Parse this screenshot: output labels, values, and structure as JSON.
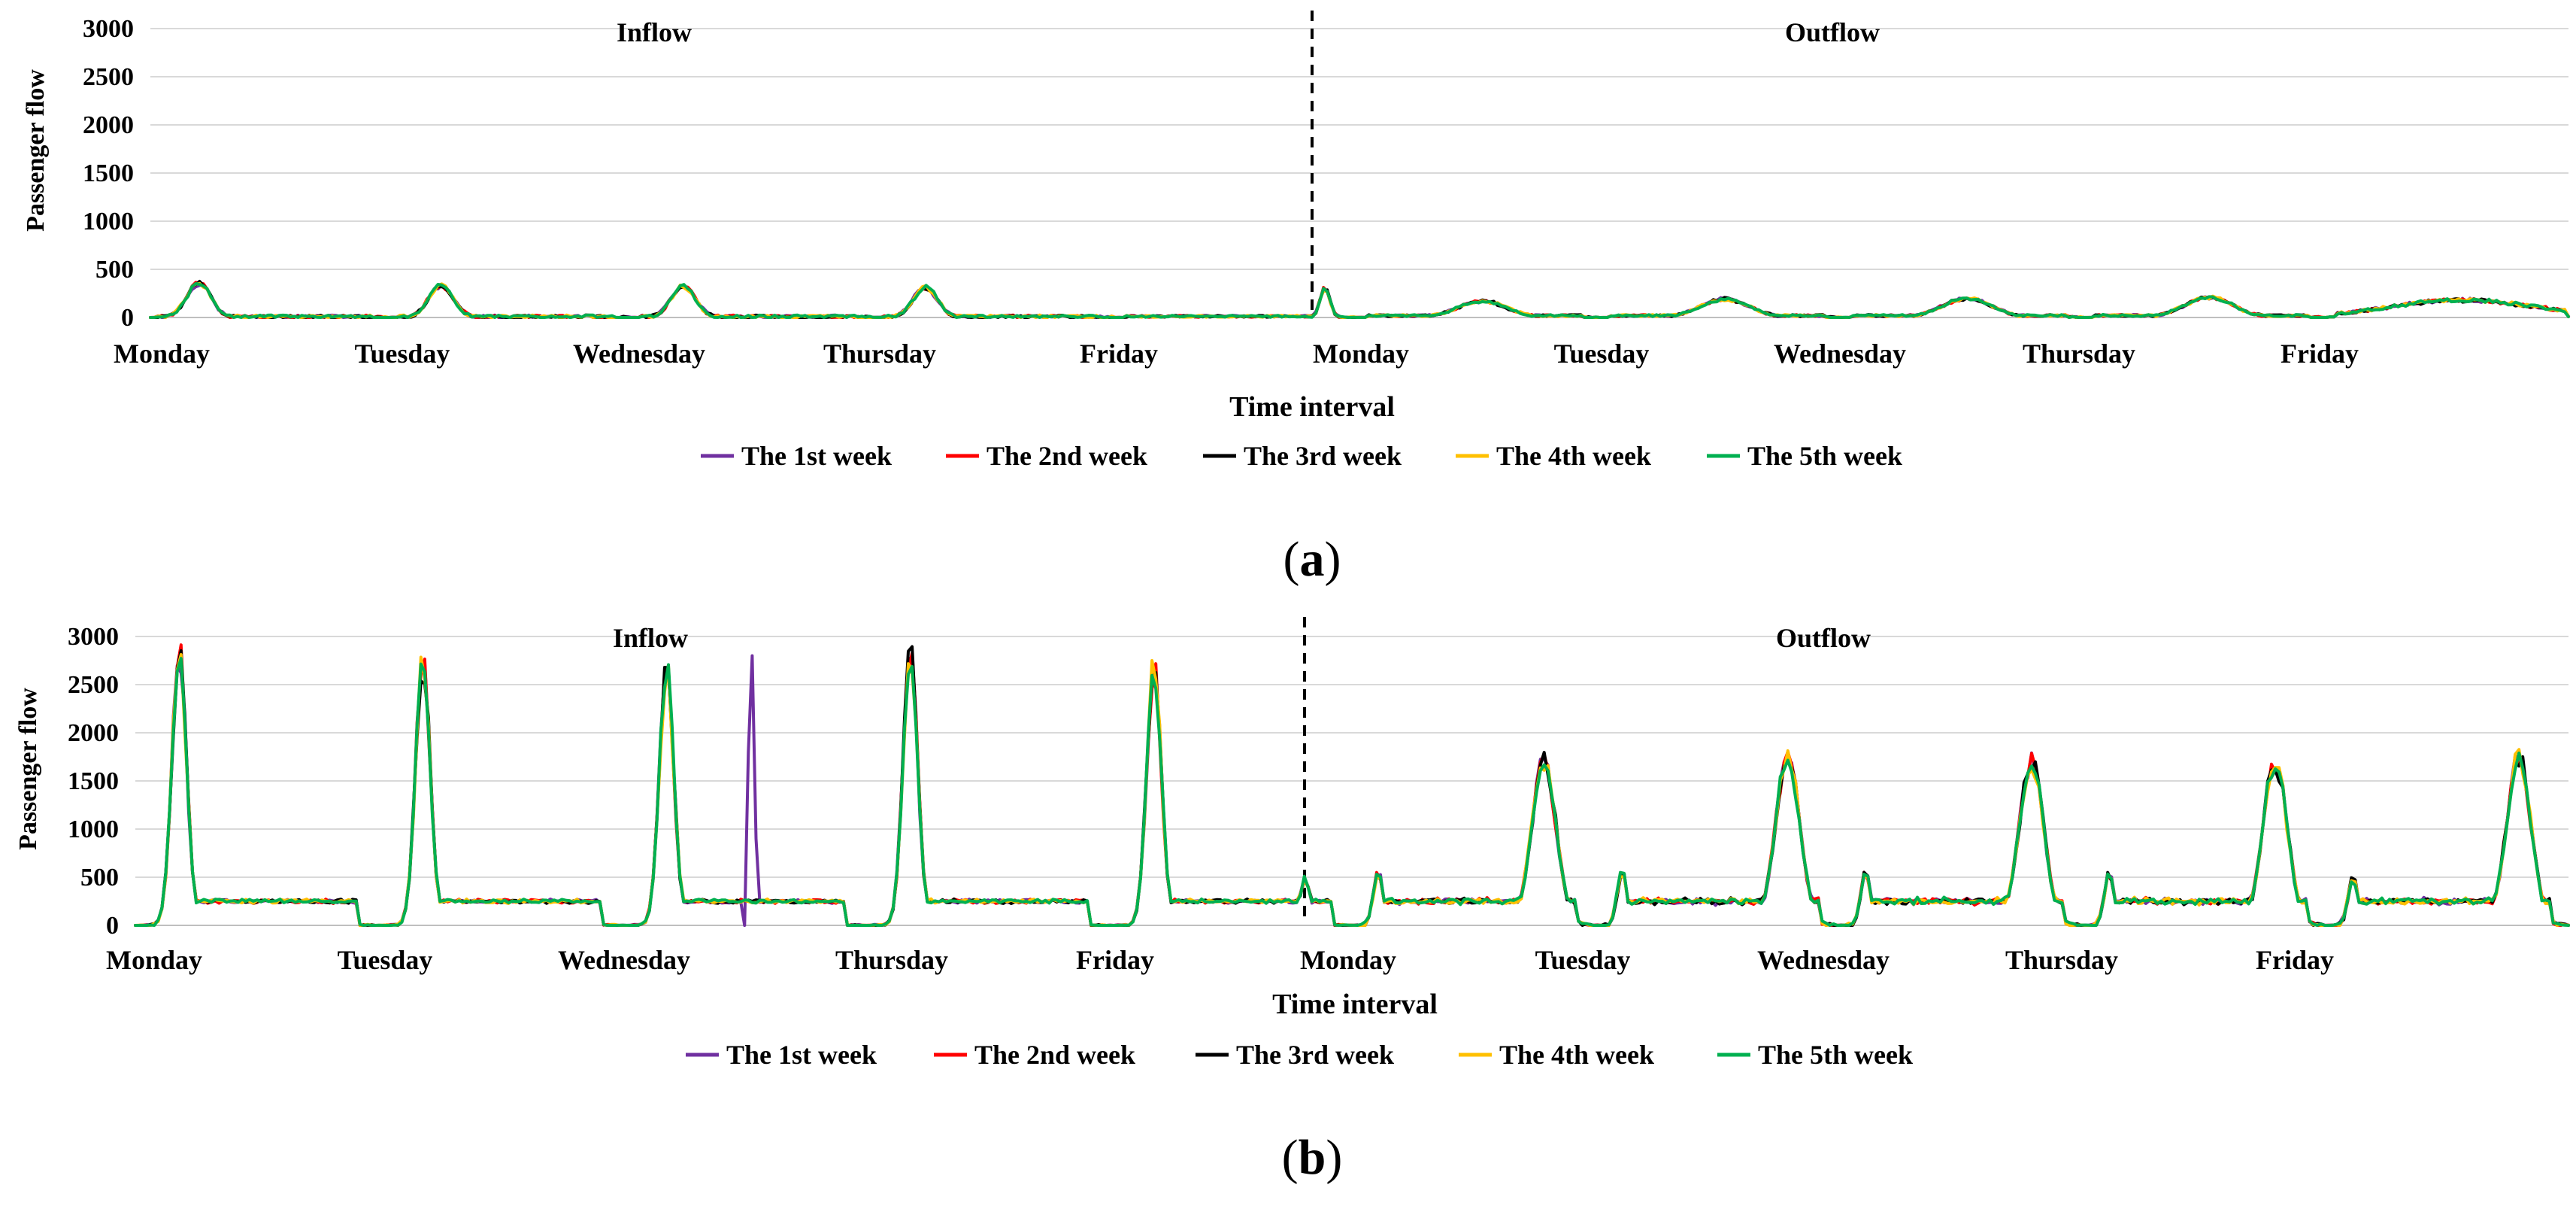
{
  "chart_data": [
    {
      "type": "line",
      "panel": "a",
      "panel_label_open": "(",
      "panel_label_letter": "a",
      "panel_label_close": ")",
      "title": "",
      "xlabel": "Time interval",
      "ylabel": "Passenger flow",
      "ylim": [
        0,
        3000
      ],
      "yticks": [
        "0",
        "500",
        "1000",
        "1500",
        "2000",
        "2500",
        "3000"
      ],
      "x_sections": [
        "Inflow",
        "Outflow"
      ],
      "categories": [
        "Monday",
        "Tuesday",
        "Wednesday",
        "Thursday",
        "Friday",
        "Monday",
        "Tuesday",
        "Wednesday",
        "Thursday",
        "Friday"
      ],
      "peak_model": {
        "section_peaks": [
          [
            [
              0.2,
              350,
              10,
              0.05,
              30
            ]
          ],
          [
            [
              0.2,
              330,
              10,
              0.05,
              30
            ]
          ],
          [
            [
              0.2,
              320,
              10,
              0.05,
              30
            ]
          ],
          [
            [
              0.2,
              310,
              10,
              0.05,
              30
            ]
          ],
          [
            [
              0.85,
              310,
              12,
              0.02,
              20
            ]
          ],
          [
            [
              0.5,
              170,
              20,
              0.1,
              20
            ]
          ],
          [
            [
              0.5,
              190,
              20,
              0.1,
              20
            ]
          ],
          [
            [
              0.5,
              200,
              20,
              0.1,
              20
            ]
          ],
          [
            [
              0.5,
              210,
              20,
              0.1,
              20
            ]
          ],
          [
            [
              0.55,
              180,
              30,
              0.3,
              30
            ]
          ]
        ]
      },
      "series": [
        {
          "name": "The 1st week",
          "color": "#7030a0"
        },
        {
          "name": "The 2nd week",
          "color": "#ff0000"
        },
        {
          "name": "The 3rd week",
          "color": "#000000"
        },
        {
          "name": "The 4th week",
          "color": "#ffc000"
        },
        {
          "name": "The 5th week",
          "color": "#00b050"
        }
      ],
      "legend_position": "bottom"
    },
    {
      "type": "line",
      "panel": "b",
      "panel_label_open": "(",
      "panel_label_letter": "b",
      "panel_label_close": ")",
      "title": "",
      "xlabel": "Time interval",
      "ylabel": "Passenger flow",
      "ylim": [
        0,
        3000
      ],
      "yticks": [
        "0",
        "500",
        "1000",
        "1500",
        "2000",
        "2500",
        "3000"
      ],
      "x_sections": [
        "Inflow",
        "Outflow"
      ],
      "categories": [
        "Monday",
        "Tuesday",
        "Wednesday",
        "Thursday",
        "Friday",
        "Monday",
        "Tuesday",
        "Wednesday",
        "Thursday",
        "Friday"
      ],
      "peak_model": {
        "section_peaks": [
          [
            [
              0.18,
              2850,
              250,
              0.03,
              20
            ]
          ],
          [
            [
              0.18,
              2750,
              250,
              0.03,
              20
            ]
          ],
          [
            [
              0.18,
              2650,
              250,
              0.03,
              20
            ]
          ],
          [
            [
              0.18,
              2850,
              250,
              0.03,
              20
            ]
          ],
          [
            [
              0.18,
              2700,
              250,
              0.03,
              20
            ],
            [
              0.8,
              500,
              0,
              0.02,
              0
            ]
          ],
          [
            [
              0.1,
              550,
              250,
              0.02,
              20
            ],
            [
              0.78,
              1700,
              0,
              0.05,
              40
            ]
          ],
          [
            [
              0.1,
              550,
              250,
              0.02,
              20
            ],
            [
              0.78,
              1750,
              0,
              0.05,
              40
            ]
          ],
          [
            [
              0.1,
              550,
              250,
              0.02,
              20
            ],
            [
              0.78,
              1700,
              0,
              0.05,
              40
            ]
          ],
          [
            [
              0.1,
              550,
              250,
              0.02,
              20
            ],
            [
              0.78,
              1680,
              0,
              0.05,
              40
            ]
          ],
          [
            [
              0.1,
              500,
              250,
              0.02,
              20
            ],
            [
              0.78,
              1750,
              0,
              0.05,
              40
            ]
          ]
        ],
        "spikes": [
          {
            "section": 2,
            "pos": 0.5,
            "series": 0,
            "values": [
              0,
              1800,
              2800,
              900
            ]
          }
        ]
      },
      "series": [
        {
          "name": "The 1st week",
          "color": "#7030a0"
        },
        {
          "name": "The 2nd week",
          "color": "#ff0000"
        },
        {
          "name": "The 3rd week",
          "color": "#000000"
        },
        {
          "name": "The 4th week",
          "color": "#ffc000"
        },
        {
          "name": "The 5th week",
          "color": "#00b050"
        }
      ],
      "legend_position": "bottom"
    }
  ]
}
